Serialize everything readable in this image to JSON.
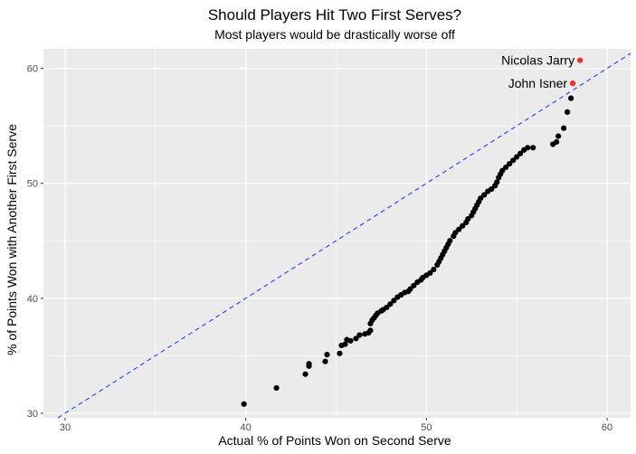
{
  "chart_data": {
    "type": "scatter",
    "title": "Should Players Hit Two First Serves?",
    "subtitle": "Most players would be drastically worse off",
    "xlabel": "Actual % of Points Won on Second Serve",
    "ylabel": "% of Points Won with Another First Serve",
    "xlim": [
      28.8,
      61.3
    ],
    "ylim": [
      29.6,
      61.7
    ],
    "x_ticks": [
      30,
      40,
      50,
      60
    ],
    "y_ticks": [
      30,
      40,
      50,
      60
    ],
    "grid": true,
    "colors": {
      "panel": "#ebebeb",
      "grid": "#ffffff",
      "points": "#000000",
      "highlight": "#ff2a1a",
      "reference_line": "#1f3fff"
    },
    "reference_line": {
      "type": "identity",
      "style": "dashed"
    },
    "series": [
      {
        "points": [
          [
            39.9,
            30.8
          ],
          [
            41.7,
            32.2
          ],
          [
            43.3,
            33.4
          ],
          [
            43.5,
            34.1
          ],
          [
            43.5,
            34.3
          ],
          [
            44.4,
            34.5
          ],
          [
            44.5,
            35.1
          ],
          [
            45.2,
            35.2
          ],
          [
            45.3,
            35.9
          ],
          [
            45.5,
            36.0
          ],
          [
            45.6,
            36.4
          ],
          [
            45.8,
            36.3
          ],
          [
            46.1,
            36.5
          ],
          [
            46.3,
            36.8
          ],
          [
            46.6,
            36.9
          ],
          [
            46.8,
            37.0
          ],
          [
            46.9,
            37.2
          ],
          [
            46.9,
            37.8
          ],
          [
            47.0,
            38.1
          ],
          [
            47.1,
            38.3
          ],
          [
            47.2,
            38.5
          ],
          [
            47.3,
            38.7
          ],
          [
            47.5,
            38.9
          ],
          [
            47.6,
            39.0
          ],
          [
            47.8,
            39.2
          ],
          [
            48.0,
            39.5
          ],
          [
            48.2,
            39.8
          ],
          [
            48.4,
            40.1
          ],
          [
            48.6,
            40.3
          ],
          [
            48.8,
            40.5
          ],
          [
            49.0,
            40.6
          ],
          [
            49.1,
            40.8
          ],
          [
            49.3,
            41.1
          ],
          [
            49.5,
            41.4
          ],
          [
            49.7,
            41.6
          ],
          [
            49.8,
            41.8
          ],
          [
            50.0,
            42.0
          ],
          [
            50.2,
            42.2
          ],
          [
            50.4,
            42.5
          ],
          [
            50.6,
            42.9
          ],
          [
            50.7,
            43.2
          ],
          [
            50.8,
            43.5
          ],
          [
            50.9,
            43.8
          ],
          [
            51.0,
            44.1
          ],
          [
            51.1,
            44.4
          ],
          [
            51.2,
            44.7
          ],
          [
            51.3,
            45.0
          ],
          [
            51.5,
            45.4
          ],
          [
            51.6,
            45.7
          ],
          [
            51.8,
            46.0
          ],
          [
            52.0,
            46.3
          ],
          [
            52.2,
            46.6
          ],
          [
            52.3,
            46.9
          ],
          [
            52.5,
            47.2
          ],
          [
            52.6,
            47.5
          ],
          [
            52.7,
            47.8
          ],
          [
            52.8,
            48.1
          ],
          [
            52.9,
            48.4
          ],
          [
            53.0,
            48.7
          ],
          [
            53.2,
            49.0
          ],
          [
            53.4,
            49.3
          ],
          [
            53.6,
            49.5
          ],
          [
            53.8,
            49.8
          ],
          [
            53.9,
            50.1
          ],
          [
            54.0,
            50.5
          ],
          [
            54.1,
            50.8
          ],
          [
            54.2,
            51.1
          ],
          [
            54.4,
            51.4
          ],
          [
            54.6,
            51.7
          ],
          [
            54.8,
            52.0
          ],
          [
            55.0,
            52.3
          ],
          [
            55.2,
            52.6
          ],
          [
            55.4,
            52.9
          ],
          [
            55.6,
            53.1
          ],
          [
            55.9,
            53.1
          ],
          [
            57.0,
            53.4
          ],
          [
            57.2,
            53.6
          ],
          [
            57.3,
            54.1
          ],
          [
            57.6,
            54.8
          ],
          [
            57.8,
            56.2
          ],
          [
            58.0,
            57.4
          ]
        ]
      },
      {
        "highlight": true,
        "points": [
          [
            58.5,
            60.7
          ],
          [
            58.1,
            58.7
          ]
        ]
      }
    ],
    "annotations": [
      {
        "text": "Nicolas Jarry",
        "x": 58.5,
        "y": 60.7
      },
      {
        "text": "John Isner",
        "x": 58.1,
        "y": 58.7
      }
    ]
  }
}
